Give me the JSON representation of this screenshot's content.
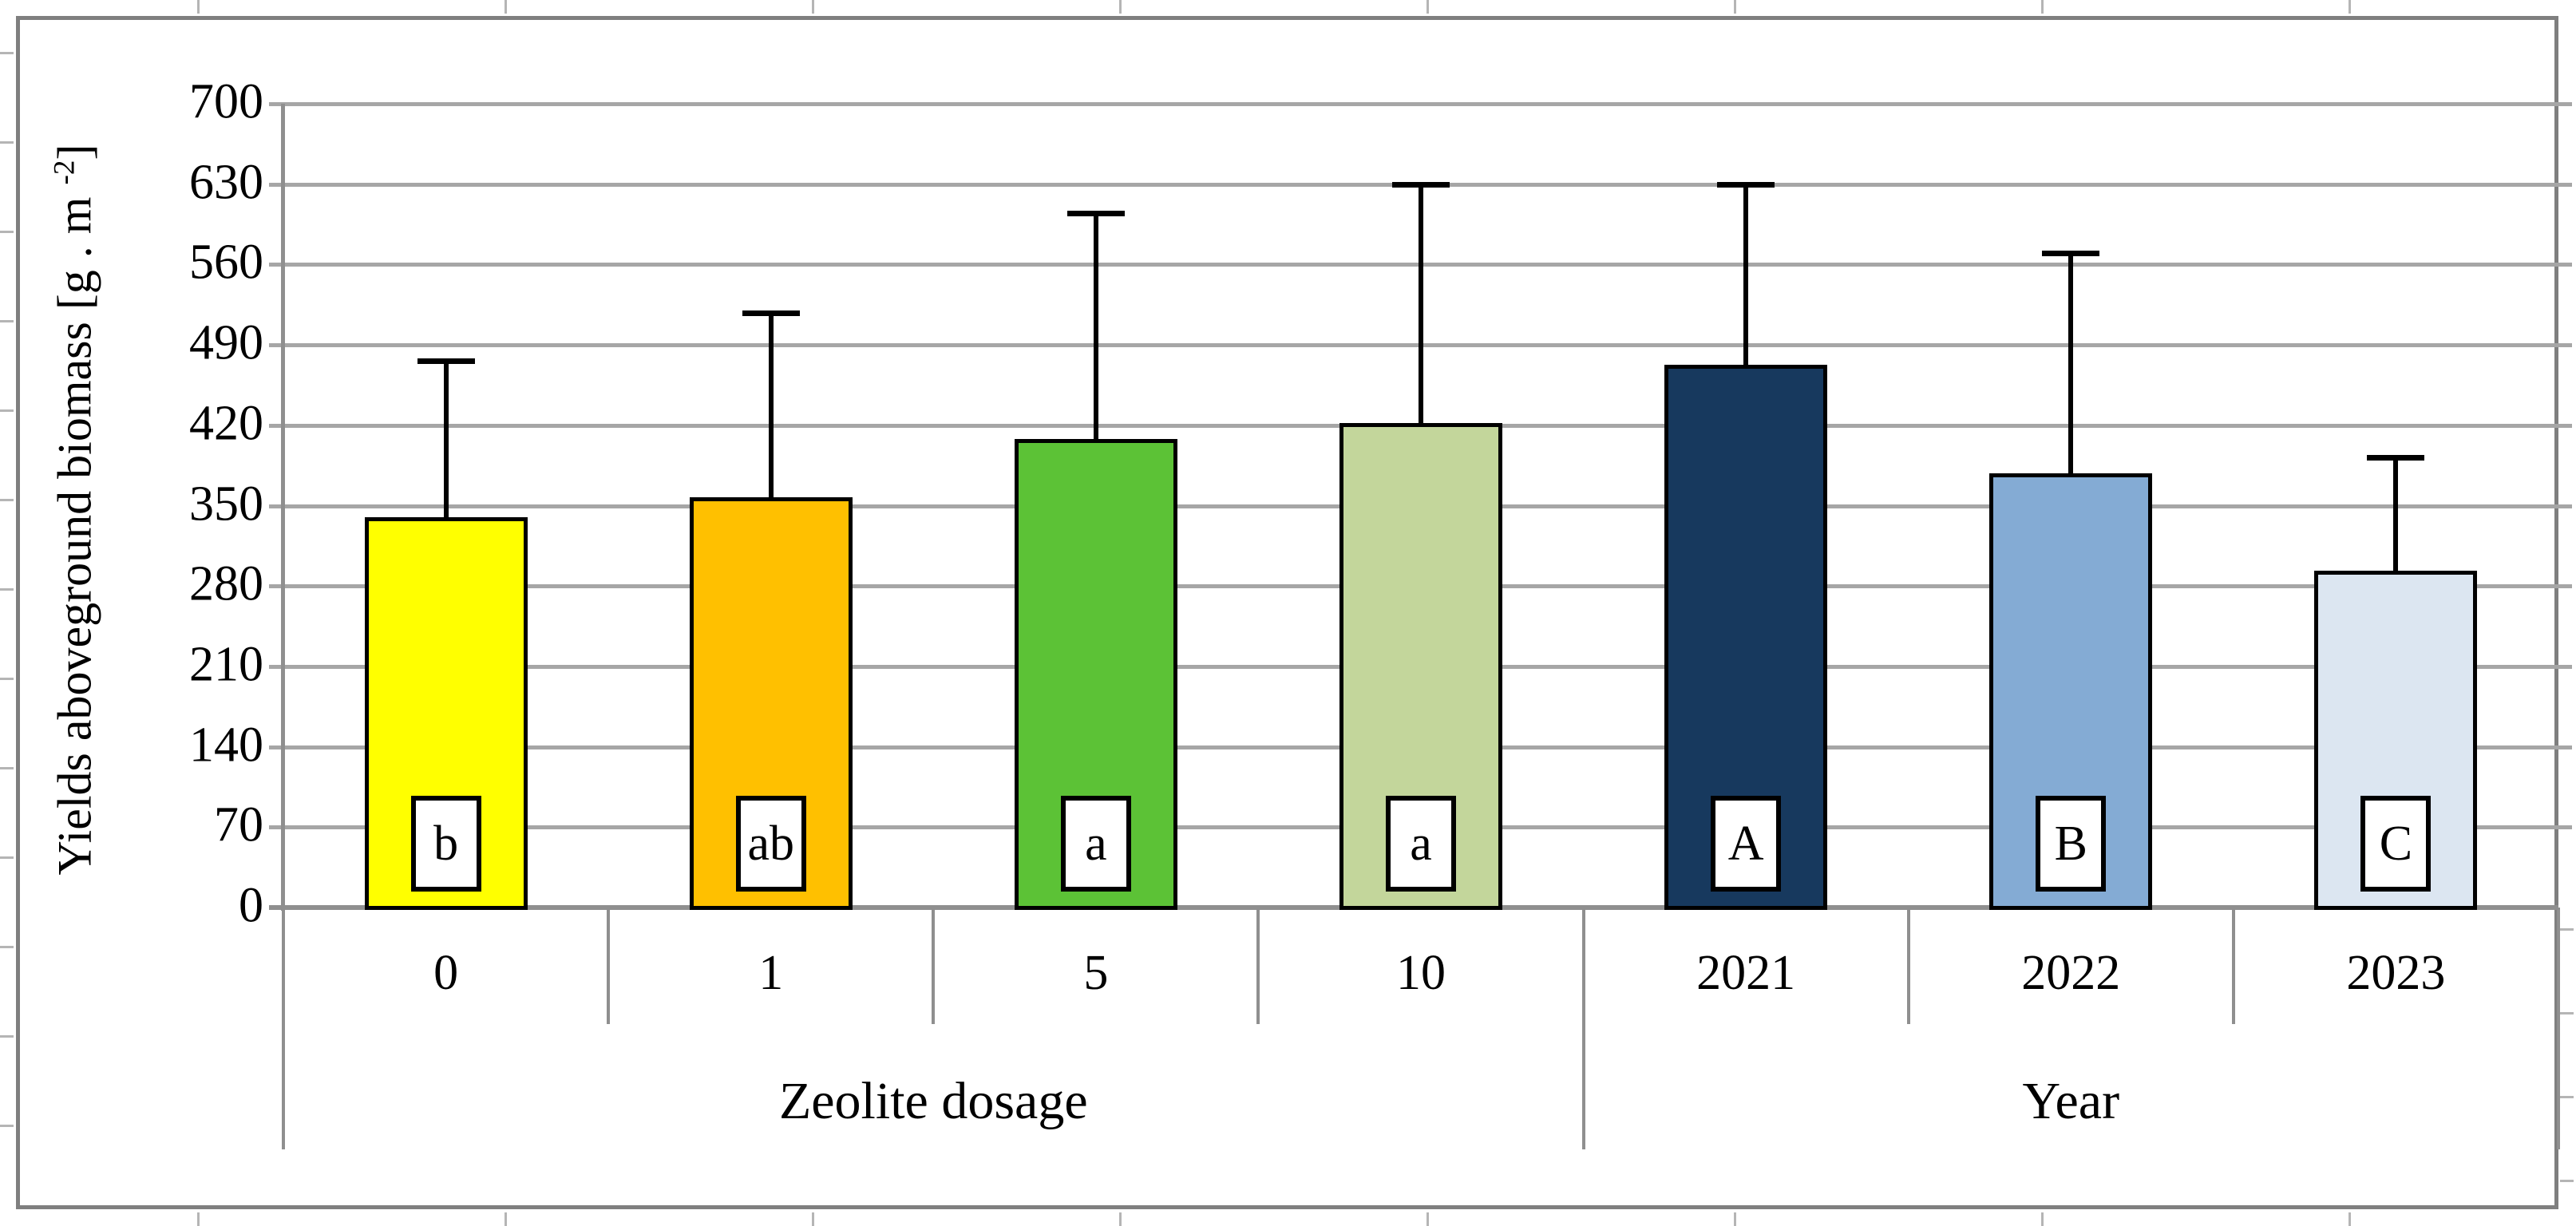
{
  "figure": {
    "background": "#FFFFFF",
    "outer_border_color": "#7F7F7F"
  },
  "y_axis": {
    "title_prefix": "Yields aboveground biomass [g . m ",
    "title_sup": "-2",
    "title_suffix": "]",
    "ticks": [
      0,
      70,
      140,
      210,
      280,
      350,
      420,
      490,
      560,
      630,
      700
    ],
    "max": 700
  },
  "style": {
    "gridline_color": "#A6A6A6",
    "axis_color": "#8F8F8F",
    "bar_border_color": "#000000",
    "error_bar_color": "#000000",
    "letter_box_background": "#FFFFFF"
  },
  "chart_data": {
    "type": "bar",
    "title": "",
    "xlabel_groups": [
      "Zeolite dosage",
      "Year"
    ],
    "ylabel": "Yields aboveground biomass [g . m^-2]",
    "ylim": [
      0,
      700
    ],
    "ytick_step": 70,
    "grid": true,
    "legend": "none",
    "categories": [
      "0",
      "1",
      "5",
      "10",
      "2021",
      "2022",
      "2023"
    ],
    "values": [
      340,
      357,
      408,
      422,
      473,
      378,
      293
    ],
    "error_bar_tops": [
      476,
      518,
      605,
      630,
      630,
      570,
      392
    ],
    "significance_letters": [
      "b",
      "ab",
      "a",
      "a",
      "A",
      "B",
      "C"
    ],
    "bar_colors": [
      "#FFFF00",
      "#FFC000",
      "#5CC236",
      "#C3D69B",
      "#17395E",
      "#84ABD4",
      "#DCE6F1"
    ],
    "groups": [
      {
        "label": "Zeolite dosage",
        "span": 4
      },
      {
        "label": "Year",
        "span": 3
      }
    ]
  }
}
